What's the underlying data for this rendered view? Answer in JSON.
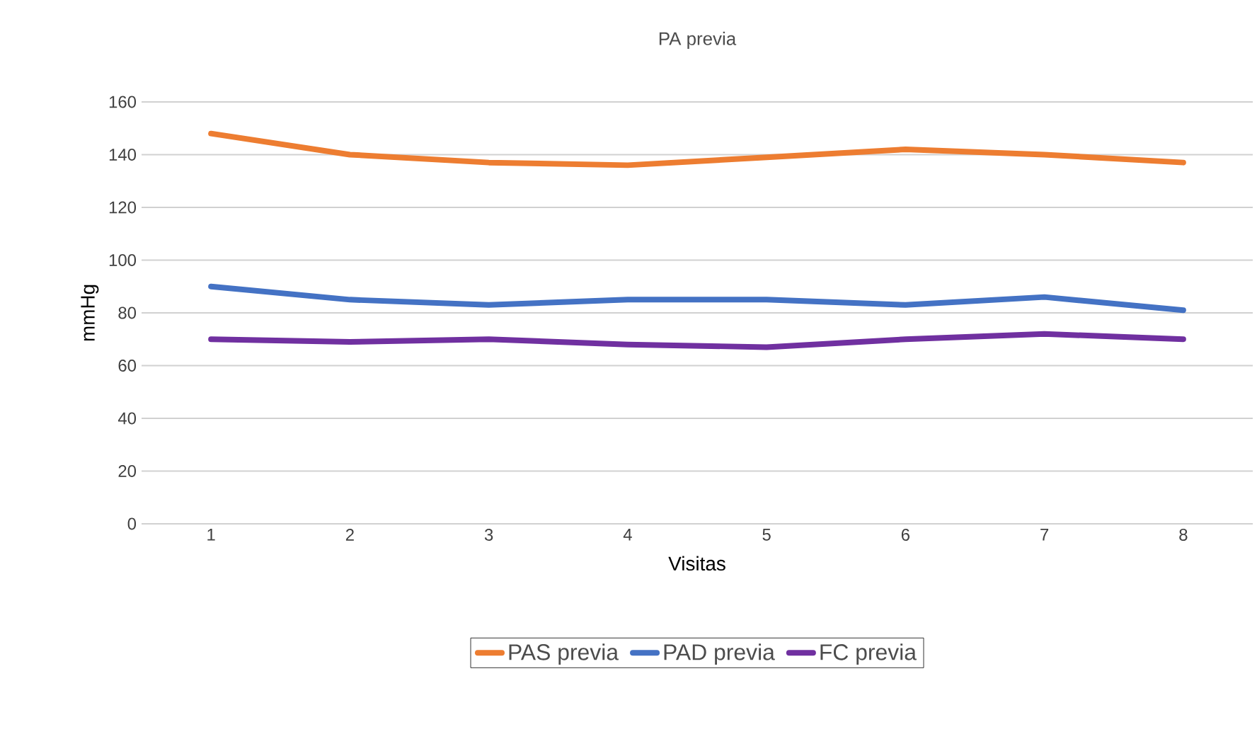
{
  "chart_data": {
    "type": "line",
    "title": "PA previa",
    "xlabel": "Visitas",
    "ylabel": "mmHg",
    "categories": [
      "1",
      "2",
      "3",
      "4",
      "5",
      "6",
      "7",
      "8"
    ],
    "series": [
      {
        "name": "PAS previa",
        "color": "#ed7d31",
        "values": [
          148,
          140,
          137,
          136,
          139,
          142,
          140,
          137
        ]
      },
      {
        "name": "PAD previa",
        "color": "#4472c4",
        "values": [
          90,
          85,
          83,
          85,
          85,
          83,
          86,
          81
        ]
      },
      {
        "name": "FC previa",
        "color": "#7030a0",
        "values": [
          70,
          69,
          70,
          68,
          67,
          70,
          72,
          70
        ]
      }
    ],
    "ylim": [
      0,
      160
    ],
    "yticks": [
      0,
      20,
      40,
      60,
      80,
      100,
      120,
      140,
      160
    ],
    "grid": "y",
    "legend": "bottom",
    "marker": "none",
    "line_style": "solid"
  }
}
